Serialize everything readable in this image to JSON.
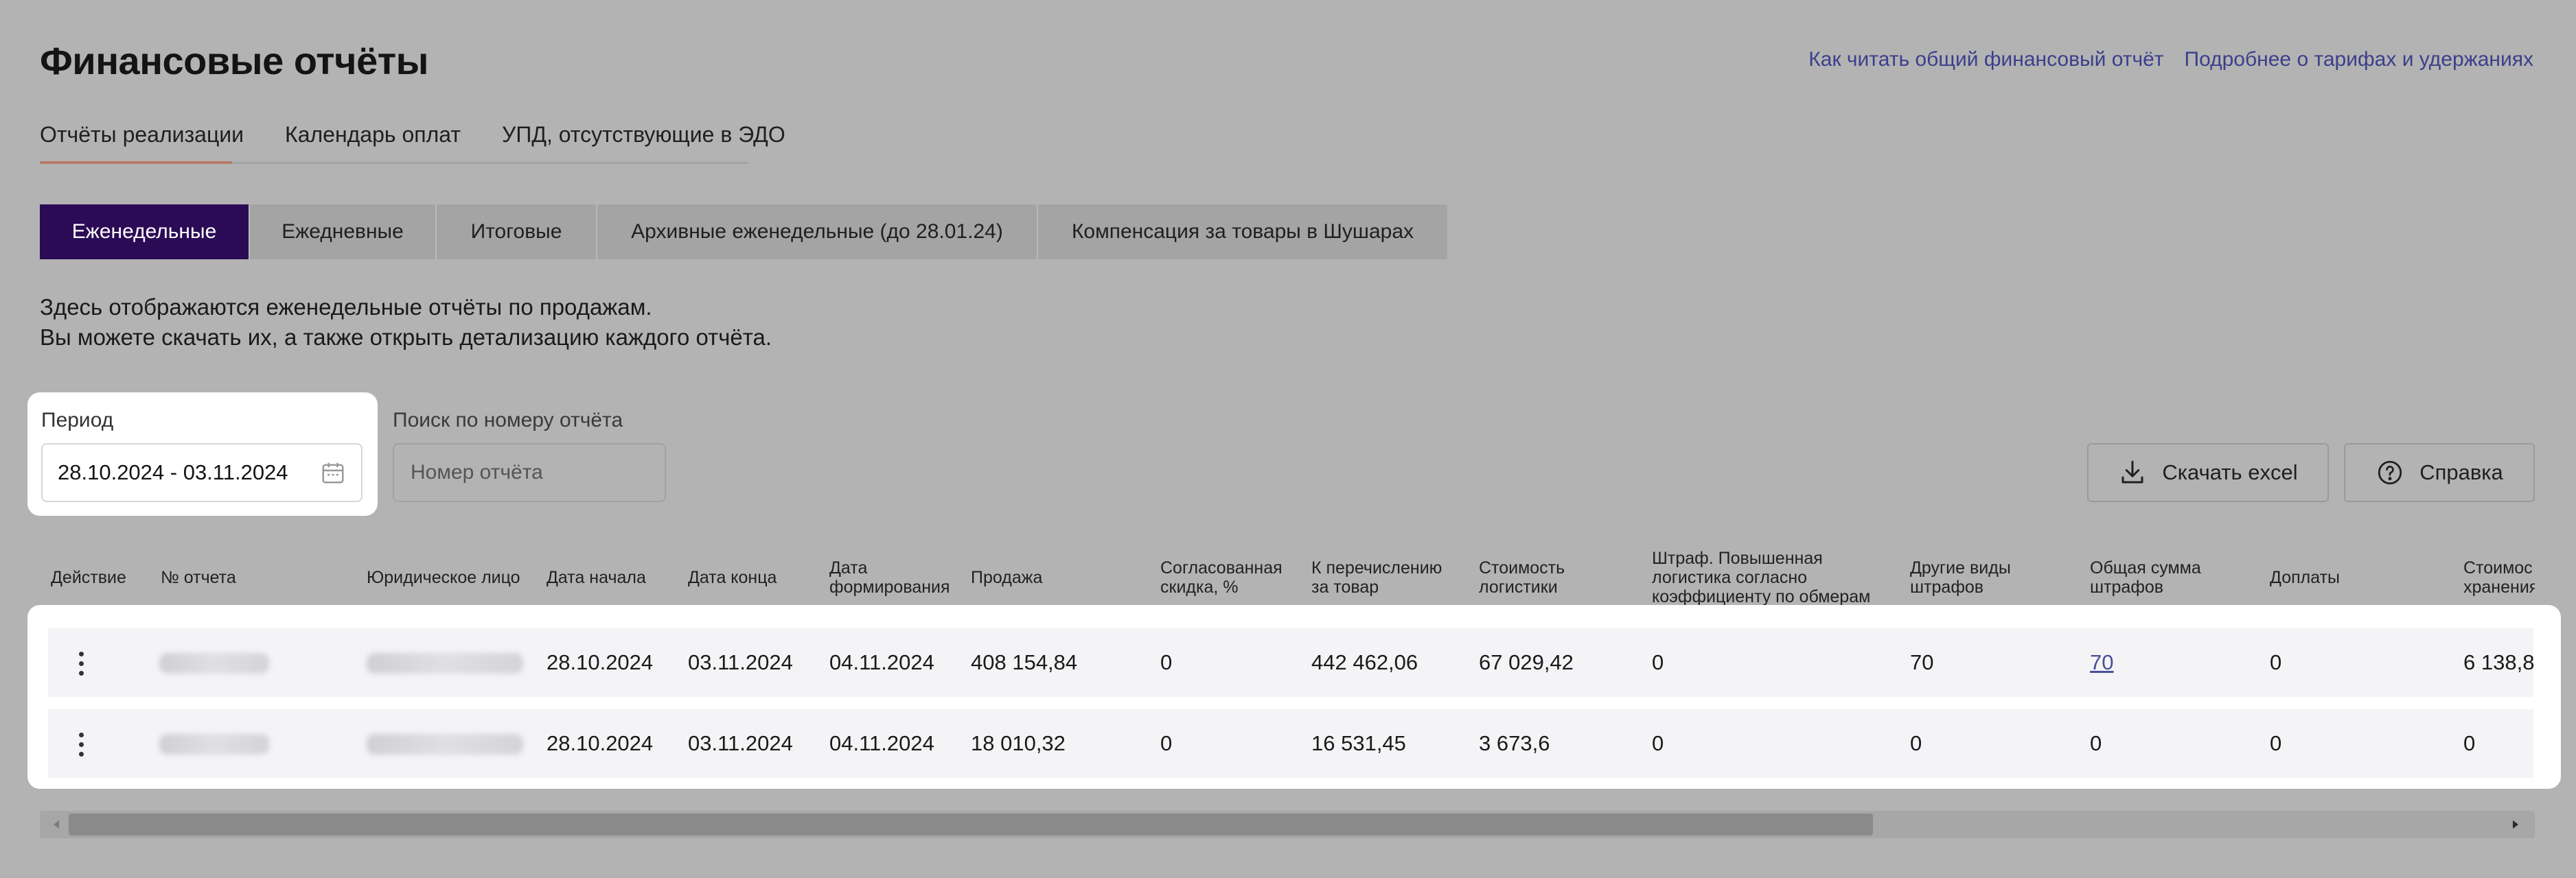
{
  "header": {
    "title": "Финансовые отчёты",
    "links": [
      "Как читать общий финансовый отчёт",
      "Подробнее о тарифах и удержаниях"
    ]
  },
  "top_tabs": [
    "Отчёты реализации",
    "Календарь оплат",
    "УПД, отсутствующие в ЭДО"
  ],
  "report_tabs": [
    "Еженедельные",
    "Ежедневные",
    "Итоговые",
    "Архивные еженедельные (до 28.01.24)",
    "Компенсация за товары в Шушарах"
  ],
  "description": {
    "line1": "Здесь отображаются еженедельные отчёты по продажам.",
    "line2": "Вы можете скачать их, а также открыть детализацию каждого отчёта."
  },
  "filters": {
    "period_label": "Период",
    "period_value": "28.10.2024 - 03.11.2024",
    "search_label": "Поиск по номеру отчёта",
    "search_placeholder": "Номер отчёта"
  },
  "buttons": {
    "excel": "Скачать excel",
    "help": "Справка"
  },
  "table": {
    "headers": {
      "action": "Действие",
      "report_no": "№ отчета",
      "legal_entity": "Юридическое лицо",
      "date_start": "Дата начала",
      "date_end": "Дата конца",
      "date_formed_1": "Дата",
      "date_formed_2": "формирования",
      "sales": "Продажа",
      "discount_1": "Согласованная",
      "discount_2": "скидка, %",
      "transfer_1": "К перечислению",
      "transfer_2": "за товар",
      "logistics_1": "Стоимость",
      "logistics_2": "логистики",
      "penalty_logistics_1": "Штраф. Повышенная",
      "penalty_logistics_2": "логистика согласно",
      "penalty_logistics_3": "коэффициенту по обмерам",
      "other_penalties_1": "Другие виды",
      "other_penalties_2": "штрафов",
      "total_penalties_1": "Общая сумма",
      "total_penalties_2": "штрафов",
      "surcharges": "Доплаты",
      "storage_1": "Стоимос",
      "storage_2": "хранения"
    },
    "rows": [
      {
        "date_start": "28.10.2024",
        "date_end": "03.11.2024",
        "date_formed": "04.11.2024",
        "sales": "408 154,84",
        "discount": "0",
        "transfer": "442 462,06",
        "logistics": "67 029,42",
        "penalty_logistics": "0",
        "other_penalties": "70",
        "total_penalties": "70",
        "surcharges": "0",
        "storage": "6 138,8"
      },
      {
        "date_start": "28.10.2024",
        "date_end": "03.11.2024",
        "date_formed": "04.11.2024",
        "sales": "18 010,32",
        "discount": "0",
        "transfer": "16 531,45",
        "logistics": "3 673,6",
        "penalty_logistics": "0",
        "other_penalties": "0",
        "total_penalties": "0",
        "surcharges": "0",
        "storage": "0"
      }
    ]
  },
  "colors": {
    "active_tab": "#2b0b55",
    "link": "#3b3f8c",
    "overlay": "#b3b3b3"
  }
}
